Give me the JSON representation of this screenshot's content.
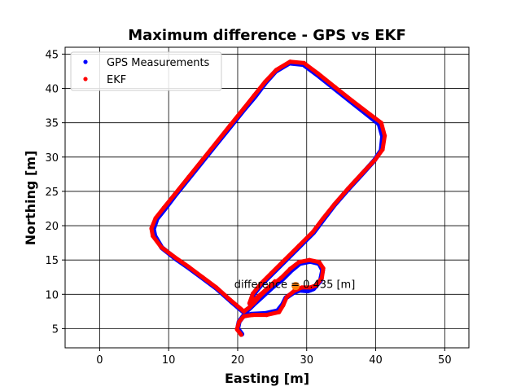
{
  "chart_data": {
    "type": "line",
    "title": "Maximum difference - GPS vs EKF",
    "xlabel": "Easting [m]",
    "ylabel": "Northing [m]",
    "xlim": [
      -5,
      53.5
    ],
    "ylim": [
      2.2,
      46
    ],
    "xticks": [
      0,
      10,
      20,
      30,
      40,
      50
    ],
    "yticks": [
      5,
      10,
      15,
      20,
      25,
      30,
      35,
      40,
      45
    ],
    "grid": true,
    "legend_position": "top-left",
    "series": [
      {
        "name": "GPS Measurements",
        "color": "#0000ff",
        "x": [
          20.6,
          20.0,
          20.2,
          20.8,
          22.0,
          24.0,
          25.8,
          26.5,
          27.0,
          28.0,
          29.0,
          30.2,
          31.0,
          32.0,
          32.3,
          31.8,
          30.5,
          29.0,
          27.8,
          26.5,
          25.0,
          23.5,
          22.5,
          21.8,
          21.0,
          19.0,
          17.0,
          15.0,
          13.0,
          11.0,
          9.0,
          8.0,
          7.8,
          8.3,
          9.5,
          11.0,
          13.0,
          15.0,
          17.0,
          19.0,
          21.0,
          22.5,
          24.0,
          25.5,
          27.5,
          29.5,
          31.5,
          34.0,
          36.5,
          39.0,
          40.5,
          41.0,
          40.8,
          39.8,
          38.0,
          36.0,
          34.0,
          32.5,
          31.0,
          29.0,
          27.0,
          25.0,
          23.5,
          22.3,
          21.8,
          22.6,
          24.0,
          25.5
        ],
        "y": [
          4.2,
          5.0,
          6.0,
          6.8,
          7.1,
          7.2,
          7.6,
          8.5,
          9.5,
          10.2,
          10.6,
          10.5,
          10.8,
          12.0,
          13.5,
          14.5,
          14.8,
          14.5,
          13.5,
          12.2,
          11.0,
          9.6,
          8.7,
          8.0,
          7.3,
          9.0,
          10.8,
          12.3,
          13.8,
          15.2,
          16.8,
          18.5,
          19.5,
          21.0,
          22.5,
          24.5,
          27.0,
          29.5,
          32.0,
          34.5,
          37.0,
          38.8,
          40.8,
          42.5,
          43.7,
          43.5,
          42.0,
          40.0,
          38.0,
          36.0,
          34.8,
          33.0,
          31.0,
          29.5,
          27.5,
          25.3,
          23.0,
          21.0,
          19.0,
          17.0,
          15.0,
          13.0,
          11.5,
          10.0,
          8.6,
          9.2,
          10.4,
          11.8
        ]
      },
      {
        "name": "EKF",
        "color": "#ff0000",
        "x": [
          20.5,
          19.9,
          20.2,
          20.9,
          22.2,
          24.2,
          26.0,
          26.6,
          27.1,
          28.2,
          29.3,
          30.5,
          31.4,
          32.2,
          32.4,
          31.8,
          30.4,
          28.9,
          27.6,
          26.3,
          24.8,
          23.3,
          22.4,
          21.7,
          20.9,
          18.9,
          16.9,
          14.9,
          12.9,
          10.9,
          8.9,
          7.7,
          7.5,
          8.1,
          9.3,
          10.9,
          12.9,
          14.9,
          16.9,
          18.9,
          20.9,
          22.4,
          24.0,
          25.6,
          27.6,
          29.6,
          31.6,
          34.1,
          36.6,
          39.2,
          40.8,
          41.3,
          41.0,
          39.9,
          38.0,
          36.0,
          34.0,
          32.4,
          30.9,
          28.9,
          26.9,
          24.9,
          23.4,
          22.2,
          21.7,
          22.5,
          23.9,
          25.4
        ],
        "y": [
          4.1,
          4.9,
          6.0,
          6.8,
          7.0,
          7.0,
          7.4,
          8.4,
          9.6,
          10.5,
          11.0,
          11.0,
          11.3,
          12.4,
          13.8,
          14.7,
          15.0,
          14.7,
          13.7,
          12.4,
          11.2,
          9.8,
          8.8,
          8.1,
          7.5,
          9.2,
          11.0,
          12.5,
          14.0,
          15.4,
          16.9,
          18.5,
          19.6,
          21.1,
          22.6,
          24.6,
          27.1,
          29.6,
          32.1,
          34.6,
          37.1,
          39.0,
          41.0,
          42.7,
          43.9,
          43.7,
          42.2,
          40.2,
          38.2,
          36.2,
          35.0,
          33.1,
          31.1,
          29.6,
          27.6,
          25.4,
          23.1,
          21.1,
          19.1,
          17.1,
          15.1,
          13.1,
          11.6,
          10.1,
          8.7,
          9.3,
          10.5,
          11.9
        ]
      }
    ],
    "max_difference_point": {
      "x": 28.4,
      "y": 11.2,
      "color": "#ff7f0e"
    },
    "annotation": {
      "text": "difference = 0.435 [m]",
      "x": 19.5,
      "y": 11.5
    }
  }
}
